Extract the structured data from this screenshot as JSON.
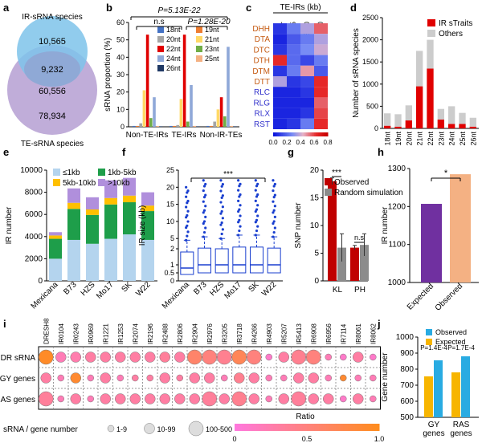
{
  "panels": {
    "a": "a",
    "b": "b",
    "c": "c",
    "d": "d",
    "e": "e",
    "f": "f",
    "g": "g",
    "h": "h",
    "i": "i",
    "j": "j"
  },
  "chart_data": [
    {
      "panel": "a",
      "type": "venn",
      "sets": [
        {
          "label": "IR-sRNA species"
        },
        {
          "label": "TE-sRNA species"
        }
      ],
      "regions": {
        "ir_only": "10,565",
        "overlap": "9,232",
        "te_top": "60,556",
        "te_only": "78,934"
      }
    },
    {
      "panel": "b",
      "type": "bar",
      "ylabel": "sRNA proportion (%)",
      "ylim": [
        0,
        60
      ],
      "yticks": [
        0,
        10,
        20,
        30,
        40,
        50,
        60
      ],
      "groups": [
        "Non-TE-IRs",
        "TE-IRs",
        "Non-IR-TEs"
      ],
      "series": [
        {
          "name": "18nt",
          "color": "#4472c4",
          "values": [
            0.5,
            0.5,
            0.5
          ]
        },
        {
          "name": "19nt",
          "color": "#ed7d31",
          "values": [
            0.5,
            0.5,
            0.5
          ]
        },
        {
          "name": "20nt",
          "color": "#a5a5a5",
          "values": [
            2,
            1,
            3
          ]
        },
        {
          "name": "21nt",
          "color": "#ffd966",
          "values": [
            21,
            16,
            10
          ]
        },
        {
          "name": "22nt",
          "color": "#e00000",
          "values": [
            53,
            53,
            17
          ]
        },
        {
          "name": "23nt",
          "color": "#70ad47",
          "values": [
            5,
            3,
            6
          ]
        },
        {
          "name": "24nt",
          "color": "#8fa8d8",
          "values": [
            17,
            24,
            46
          ]
        },
        {
          "name": "25nt",
          "color": "#f4b183",
          "values": [
            0.5,
            0.5,
            0.5
          ]
        },
        {
          "name": "26nt",
          "color": "#1f3864",
          "values": [
            0.3,
            0.3,
            0.3
          ]
        }
      ],
      "annotations": [
        "P=5.13E-22",
        "n.s",
        "P=1.28E-20"
      ]
    },
    {
      "panel": "c",
      "type": "heatmap",
      "title": "TE-IRs (kb)",
      "columns": [
        "<1",
        "1-5",
        "5-10",
        ">10"
      ],
      "rows": [
        "DHH",
        "DTA",
        "DTC",
        "DTH",
        "DTM",
        "DTT",
        "RLC",
        "RLG",
        "RLX",
        "RST"
      ],
      "row_colors": [
        "#c55a11",
        "#c55a11",
        "#c55a11",
        "#c55a11",
        "#c55a11",
        "#c55a11",
        "#3333cc",
        "#3333cc",
        "#3333cc",
        "#3333cc"
      ],
      "values": [
        [
          0.1,
          0.3,
          0.45,
          0.7
        ],
        [
          0.05,
          0.2,
          0.3,
          0.45
        ],
        [
          0.1,
          0.25,
          0.35,
          0.5
        ],
        [
          0.8,
          0.25,
          0.15,
          0.3
        ],
        [
          0.1,
          0.3,
          0.6,
          0.2
        ],
        [
          0.45,
          0.1,
          0.15,
          0.8
        ],
        [
          0.05,
          0.05,
          0.1,
          0.8
        ],
        [
          0.05,
          0.05,
          0.05,
          0.7
        ],
        [
          0.05,
          0.05,
          0.1,
          0.75
        ],
        [
          0.05,
          0.1,
          0.3,
          0.8
        ]
      ],
      "scale_ticks": [
        "0.0",
        "0.2",
        "0.4",
        "0.6",
        "0.8"
      ]
    },
    {
      "panel": "d",
      "type": "bar",
      "ylabel": "Number of sRNA species",
      "ylim": [
        0,
        2500
      ],
      "yticks": [
        0,
        500,
        1000,
        1500,
        2000,
        2500
      ],
      "categories": [
        "18nt",
        "19nt",
        "20nt",
        "21nt",
        "22nt",
        "23nt",
        "24nt",
        "25nt",
        "26nt"
      ],
      "series": [
        {
          "name": "IR sTraits",
          "color": "#e00000",
          "values": [
            60,
            40,
            180,
            950,
            1350,
            200,
            100,
            100,
            40
          ]
        },
        {
          "name": "Others",
          "color": "#cccccc",
          "values": [
            280,
            280,
            340,
            800,
            650,
            240,
            400,
            250,
            200
          ]
        }
      ]
    },
    {
      "panel": "e",
      "type": "bar",
      "ylabel": "IR number",
      "ylim": [
        0,
        10000
      ],
      "yticks": [
        0,
        2000,
        4000,
        6000,
        8000,
        10000
      ],
      "categories": [
        "Mexicana",
        "B73",
        "HZS",
        "Mo17",
        "SK",
        "W22"
      ],
      "series": [
        {
          "name": "≤1kb",
          "color": "#b4d4ee",
          "values": [
            2000,
            3700,
            3350,
            3800,
            4200,
            3700
          ]
        },
        {
          "name": "1kb-5kb",
          "color": "#1e9e4a",
          "values": [
            1800,
            2800,
            2600,
            3100,
            2900,
            2600
          ]
        },
        {
          "name": "5kb-10kb",
          "color": "#ffc000",
          "values": [
            300,
            550,
            500,
            580,
            600,
            500
          ]
        },
        {
          "name": ">10kb",
          "color": "#b08fdc",
          "values": [
            300,
            1300,
            1100,
            1600,
            1600,
            1200
          ]
        }
      ]
    },
    {
      "panel": "f",
      "type": "box",
      "ylabel": "IR size (kb)",
      "ylim": [
        0,
        25
      ],
      "yticks": [
        "0",
        "0.5",
        "1",
        "2",
        "5",
        "10",
        "15",
        "20",
        "25"
      ],
      "categories": [
        "Mexicana",
        "B73",
        "HZS",
        "Mo17",
        "SK",
        "W22"
      ],
      "annotations": [
        "***"
      ]
    },
    {
      "panel": "g",
      "type": "bar",
      "ylabel": "SNP number",
      "ylim": [
        0,
        20
      ],
      "yticks": [
        0,
        5,
        10,
        15,
        20
      ],
      "categories": [
        "KL",
        "PH"
      ],
      "series": [
        {
          "name": "Observed",
          "color": "#c00000",
          "values": [
            18,
            6
          ]
        },
        {
          "name": "Random simulation",
          "color": "#8c8c8c",
          "values": [
            6,
            6.5
          ]
        }
      ],
      "annotations": [
        "***",
        "n.s"
      ]
    },
    {
      "panel": "h",
      "type": "bar",
      "ylabel": "IR number",
      "ylim": [
        1000,
        1300
      ],
      "yticks": [
        1000,
        1100,
        1200,
        1300
      ],
      "categories": [
        "Expected",
        "Observed"
      ],
      "values": [
        1207,
        1285
      ],
      "colors": [
        "#7030a0",
        "#f4b183"
      ],
      "annotations": [
        "*"
      ]
    },
    {
      "panel": "i",
      "type": "bubble",
      "columns": [
        "DRESH8",
        "IR0104",
        "IR0243",
        "IR0969",
        "IR1221",
        "IR1253",
        "IR2074",
        "IR2196",
        "IR2488",
        "IR2806",
        "IR2904",
        "IR2976",
        "IR3205",
        "IR3718",
        "IR4266",
        "IR4903",
        "IR5207",
        "IR5413",
        "IR6908",
        "IR6956",
        "IR7114",
        "IR8061",
        "IR8062"
      ],
      "rows": [
        "DR sRNA",
        "GY genes",
        "RAS genes"
      ],
      "sizes": [
        [
          3,
          2,
          2,
          2,
          2,
          2,
          2,
          2,
          2,
          2,
          3,
          3,
          3,
          3,
          3,
          1,
          2,
          3,
          3,
          1,
          1,
          2,
          1
        ],
        [
          2,
          1,
          2,
          1,
          2,
          1,
          1,
          1,
          2,
          1,
          2,
          2,
          1,
          2,
          2,
          1,
          1,
          2,
          2,
          1,
          1,
          1,
          1
        ],
        [
          3,
          1,
          2,
          1,
          2,
          2,
          2,
          2,
          2,
          2,
          2,
          3,
          2,
          3,
          2,
          1,
          2,
          3,
          2,
          2,
          1,
          2,
          1
        ]
      ],
      "ratios": [
        [
          0.95,
          0.2,
          0.25,
          0.3,
          0.3,
          0.3,
          0.3,
          0.3,
          0.35,
          0.3,
          0.6,
          0.5,
          0.4,
          0.7,
          0.5,
          0.1,
          0.3,
          0.4,
          0.5,
          0.2,
          0.1,
          0.3,
          0.1
        ],
        [
          0.3,
          0.2,
          0.9,
          0.2,
          0.3,
          0.2,
          0.3,
          0.3,
          0.3,
          0.3,
          0.3,
          0.3,
          0.2,
          0.4,
          0.3,
          0.2,
          0.2,
          0.3,
          0.3,
          0.2,
          0.9,
          0.2,
          0.2
        ],
        [
          0.35,
          0.2,
          0.3,
          0.2,
          0.3,
          0.3,
          0.3,
          0.3,
          0.3,
          0.3,
          0.3,
          0.35,
          0.3,
          0.4,
          0.3,
          0.2,
          0.3,
          0.35,
          0.3,
          0.3,
          0.1,
          0.3,
          0.2
        ]
      ],
      "size_legend_title": "sRNA / gene number",
      "size_legend": [
        "1-9",
        "10-99",
        "100-500"
      ],
      "ratio_title": "Ratio",
      "ratio_ticks": [
        "0",
        "0.5",
        "1.0"
      ]
    },
    {
      "panel": "j",
      "type": "bar",
      "ylabel": "Gene number",
      "ylim": [
        500,
        1000
      ],
      "yticks": [
        500,
        600,
        700,
        800,
        900,
        1000
      ],
      "categories": [
        "GY genes",
        "RAS genes"
      ],
      "series": [
        {
          "name": "Observed",
          "color": "#29abe2",
          "values": [
            855,
            880
          ]
        },
        {
          "name": "Expected",
          "color": "#f7b500",
          "values": [
            755,
            780
          ]
        }
      ],
      "annotations": [
        "P=1.4E-4",
        "P=1.7E-4"
      ]
    }
  ]
}
